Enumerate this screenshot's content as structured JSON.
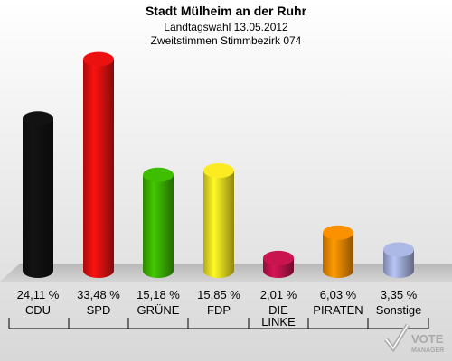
{
  "chart_data": {
    "type": "bar",
    "title": "Stadt Mülheim an der Ruhr",
    "subtitle_lines": [
      "Landtagswahl 13.05.2012",
      "Zweitstimmen Stimmbezirk 074"
    ],
    "categories": [
      "CDU",
      "SPD",
      "GRÜNE",
      "FDP",
      "DIE LINKE",
      "PIRATEN",
      "Sonstige"
    ],
    "values": [
      24.11,
      33.48,
      15.18,
      15.85,
      2.01,
      6.03,
      3.35
    ],
    "value_labels": [
      "24,11 %",
      "33,48 %",
      "15,18 %",
      "15,85 %",
      "2,01 %",
      "6,03 %",
      "3,35 %"
    ],
    "colors": [
      "#111111",
      "#e01010",
      "#3cb400",
      "#f0e020",
      "#c0134c",
      "#f08a00",
      "#a4b0dc"
    ],
    "ylim": [
      0,
      35
    ],
    "grid": false,
    "legend": "none"
  },
  "logo": {
    "line1": "VOTE",
    "line2": "MANAGER"
  }
}
